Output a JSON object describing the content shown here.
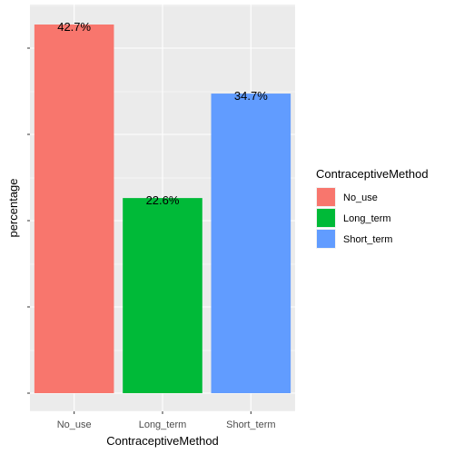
{
  "chart_data": {
    "type": "bar",
    "categories": [
      "No_use",
      "Long_term",
      "Short_term"
    ],
    "values": [
      42.7,
      22.6,
      34.7
    ],
    "value_labels": [
      "42.7%",
      "22.6%",
      "34.7%"
    ],
    "colors": [
      "#F8766D",
      "#00BA38",
      "#619CFF"
    ],
    "xlabel": "ContraceptiveMethod",
    "ylabel": "percentage",
    "ylim": [
      0,
      42.7
    ],
    "y_tick_labels_shown": false,
    "grid": true,
    "panel_background": "#EBEBEB",
    "legend": {
      "title": "ContraceptiveMethod",
      "placement": "right",
      "entries": [
        "No_use",
        "Long_term",
        "Short_term"
      ]
    }
  }
}
